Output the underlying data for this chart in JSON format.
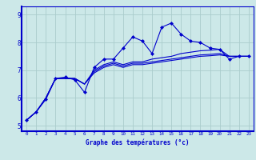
{
  "xlabel": "Graphe des températures (°c)",
  "ylabel": "",
  "background_color": "#cce8e8",
  "grid_color": "#aacccc",
  "line_color": "#0000cc",
  "xlim": [
    -0.5,
    23.5
  ],
  "ylim": [
    4.8,
    9.3
  ],
  "xticks": [
    0,
    1,
    2,
    3,
    4,
    5,
    6,
    7,
    8,
    9,
    10,
    11,
    12,
    13,
    14,
    15,
    16,
    17,
    18,
    19,
    20,
    21,
    22,
    23
  ],
  "yticks": [
    5,
    6,
    7,
    8,
    9
  ],
  "line1": [
    5.2,
    5.5,
    5.95,
    6.7,
    6.75,
    6.65,
    6.2,
    7.1,
    7.4,
    7.4,
    7.8,
    8.2,
    8.05,
    7.6,
    8.55,
    8.7,
    8.3,
    8.05,
    8.0,
    7.8,
    7.75,
    7.4,
    7.5,
    7.5
  ],
  "line2": [
    5.2,
    5.5,
    6.0,
    6.7,
    6.7,
    6.7,
    6.5,
    6.9,
    7.1,
    7.2,
    7.1,
    7.2,
    7.2,
    7.25,
    7.3,
    7.35,
    7.4,
    7.45,
    7.5,
    7.52,
    7.55,
    7.5,
    7.5,
    7.5
  ],
  "line3": [
    5.2,
    5.5,
    6.0,
    6.7,
    6.7,
    6.7,
    6.5,
    6.95,
    7.15,
    7.25,
    7.15,
    7.25,
    7.25,
    7.3,
    7.35,
    7.4,
    7.45,
    7.5,
    7.55,
    7.57,
    7.6,
    7.5,
    7.5,
    7.5
  ],
  "line4": [
    5.2,
    5.5,
    6.0,
    6.7,
    6.7,
    6.7,
    6.5,
    7.0,
    7.2,
    7.3,
    7.2,
    7.3,
    7.3,
    7.4,
    7.45,
    7.5,
    7.6,
    7.65,
    7.7,
    7.72,
    7.75,
    7.5,
    7.5,
    7.5
  ]
}
